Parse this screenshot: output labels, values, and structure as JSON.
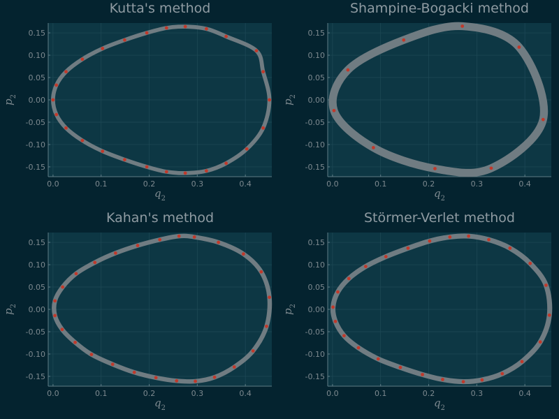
{
  "colors": {
    "background": "#04232f",
    "plot_area": "#0d3744",
    "grid": "#1f4a57",
    "axis": "#5f7c86",
    "trajectory": "#707c82",
    "markers": "#c0392b",
    "text": "#8f9ba2"
  },
  "chart_data": [
    {
      "type": "line",
      "title": "Kutta's method",
      "xlabel": "q",
      "xlabel_sub": "2",
      "ylabel": "p",
      "ylabel_sub": "2",
      "xlim": [
        -0.01,
        0.455
      ],
      "ylim": [
        -0.172,
        0.172
      ],
      "xticks": [
        "0.0",
        "0.1",
        "0.2",
        "0.3",
        "0.4"
      ],
      "yticks": [
        "-0.15",
        "-0.10",
        "-0.05",
        "0.00",
        "0.05",
        "0.10",
        "0.15"
      ],
      "grid": true,
      "legend": "none",
      "band_width": 0.004,
      "series": [
        {
          "marker_points": [
            [
              0.437,
              0.063
            ],
            [
              0.423,
              0.11
            ],
            [
              0.36,
              0.142
            ],
            [
              0.319,
              0.159
            ],
            [
              0.275,
              0.164
            ],
            [
              0.236,
              0.161
            ],
            [
              0.195,
              0.15
            ],
            [
              0.149,
              0.134
            ],
            [
              0.103,
              0.115
            ],
            [
              0.061,
              0.091
            ],
            [
              0.027,
              0.063
            ],
            [
              0.007,
              0.033
            ],
            [
              0.0,
              0.0
            ],
            [
              0.007,
              -0.033
            ],
            [
              0.027,
              -0.063
            ],
            [
              0.061,
              -0.091
            ],
            [
              0.103,
              -0.115
            ],
            [
              0.149,
              -0.134
            ],
            [
              0.195,
              -0.15
            ],
            [
              0.236,
              -0.161
            ],
            [
              0.275,
              -0.164
            ],
            [
              0.319,
              -0.159
            ],
            [
              0.36,
              -0.142
            ],
            [
              0.403,
              -0.11
            ],
            [
              0.437,
              -0.063
            ],
            [
              0.45,
              0.0
            ]
          ]
        }
      ]
    },
    {
      "type": "line",
      "title": "Shampine-Bogacki method",
      "xlabel": "q",
      "xlabel_sub": "2",
      "ylabel": "p",
      "ylabel_sub": "2",
      "xlim": [
        -0.01,
        0.455
      ],
      "ylim": [
        -0.172,
        0.172
      ],
      "xticks": [
        "0.0",
        "0.1",
        "0.2",
        "0.3",
        "0.4"
      ],
      "yticks": [
        "-0.15",
        "-0.10",
        "-0.05",
        "0.00",
        "0.05",
        "0.10",
        "0.15"
      ],
      "grid": true,
      "legend": "none",
      "band_width": 0.012,
      "series": [
        {
          "marker_points": [
            [
              0.27,
              0.165
            ],
            [
              0.148,
              0.134
            ],
            [
              0.032,
              0.067
            ],
            [
              0.003,
              -0.024
            ],
            [
              0.085,
              -0.107
            ],
            [
              0.213,
              -0.154
            ],
            [
              0.33,
              -0.153
            ],
            [
              0.438,
              -0.044
            ],
            [
              0.388,
              0.118
            ]
          ]
        }
      ]
    },
    {
      "type": "line",
      "title": "Kahan's method",
      "xlabel": "q",
      "xlabel_sub": "2",
      "ylabel": "p",
      "ylabel_sub": "2",
      "xlim": [
        -0.01,
        0.455
      ],
      "ylim": [
        -0.172,
        0.172
      ],
      "xticks": [
        "0.0",
        "0.1",
        "0.2",
        "0.3",
        "0.4"
      ],
      "yticks": [
        "-0.15",
        "-0.10",
        "-0.05",
        "0.00",
        "0.05",
        "0.10",
        "0.15"
      ],
      "grid": true,
      "legend": "none",
      "band_width": 0.005,
      "series": [
        {
          "marker_points": [
            [
              0.45,
              0.027
            ],
            [
              0.433,
              0.084
            ],
            [
              0.396,
              0.124
            ],
            [
              0.344,
              0.15
            ],
            [
              0.294,
              0.162
            ],
            [
              0.262,
              0.164
            ],
            [
              0.222,
              0.156
            ],
            [
              0.176,
              0.143
            ],
            [
              0.13,
              0.126
            ],
            [
              0.087,
              0.105
            ],
            [
              0.048,
              0.08
            ],
            [
              0.02,
              0.05
            ],
            [
              0.004,
              0.019
            ],
            [
              0.004,
              -0.014
            ],
            [
              0.019,
              -0.045
            ],
            [
              0.046,
              -0.074
            ],
            [
              0.08,
              -0.101
            ],
            [
              0.124,
              -0.123
            ],
            [
              0.169,
              -0.141
            ],
            [
              0.214,
              -0.153
            ],
            [
              0.257,
              -0.16
            ],
            [
              0.296,
              -0.161
            ],
            [
              0.336,
              -0.152
            ],
            [
              0.377,
              -0.129
            ],
            [
              0.416,
              -0.093
            ],
            [
              0.444,
              -0.038
            ]
          ]
        }
      ]
    },
    {
      "type": "line",
      "title": "Störmer-Verlet method",
      "xlabel": "q",
      "xlabel_sub": "2",
      "ylabel": "p",
      "ylabel_sub": "2",
      "xlim": [
        -0.01,
        0.455
      ],
      "ylim": [
        -0.172,
        0.172
      ],
      "xticks": [
        "0.0",
        "0.1",
        "0.2",
        "0.3",
        "0.4"
      ],
      "yticks": [
        "-0.15",
        "-0.10",
        "-0.05",
        "0.00",
        "0.05",
        "0.10",
        "0.15"
      ],
      "grid": true,
      "legend": "none",
      "band_width": 0.006,
      "series": [
        {
          "marker_points": [
            [
              0.451,
              -0.013
            ],
            [
              0.444,
              0.054
            ],
            [
              0.411,
              0.103
            ],
            [
              0.369,
              0.137
            ],
            [
              0.325,
              0.156
            ],
            [
              0.283,
              0.164
            ],
            [
              0.244,
              0.162
            ],
            [
              0.202,
              0.153
            ],
            [
              0.157,
              0.137
            ],
            [
              0.111,
              0.118
            ],
            [
              0.069,
              0.096
            ],
            [
              0.034,
              0.069
            ],
            [
              0.011,
              0.039
            ],
            [
              0.001,
              0.005
            ],
            [
              0.006,
              -0.027
            ],
            [
              0.024,
              -0.059
            ],
            [
              0.054,
              -0.086
            ],
            [
              0.095,
              -0.111
            ],
            [
              0.141,
              -0.13
            ],
            [
              0.187,
              -0.146
            ],
            [
              0.229,
              -0.157
            ],
            [
              0.272,
              -0.162
            ],
            [
              0.311,
              -0.158
            ],
            [
              0.353,
              -0.144
            ],
            [
              0.394,
              -0.117
            ],
            [
              0.432,
              -0.073
            ]
          ]
        }
      ]
    }
  ]
}
